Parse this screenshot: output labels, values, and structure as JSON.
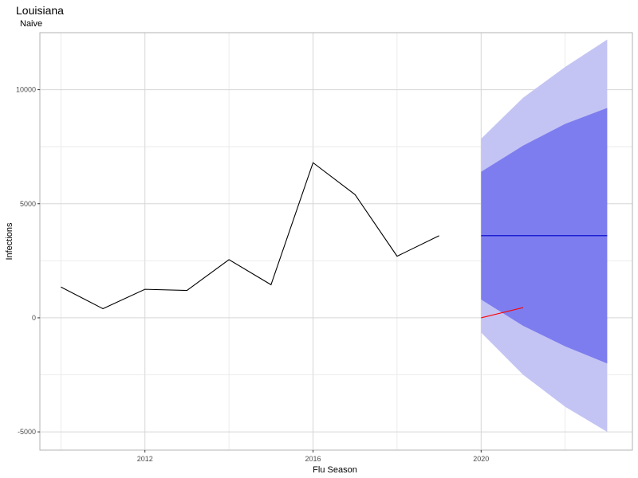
{
  "chart_data": {
    "type": "line",
    "title": "Louisiana",
    "subtitle": "Naive",
    "xlabel": "Flu Season",
    "ylabel": "Infections",
    "xlim": [
      2009.5,
      2023.6
    ],
    "ylim": [
      -5800,
      12500
    ],
    "x_ticks": [
      2012,
      2016,
      2020
    ],
    "x_tick_labels": [
      "2012",
      "2016",
      "2020"
    ],
    "y_ticks": [
      -5000,
      0,
      5000,
      10000
    ],
    "y_tick_labels": [
      "-5000",
      "0",
      "5000",
      "10000"
    ],
    "grid": true,
    "series": [
      {
        "role": "observed",
        "color": "#000000",
        "x": [
          2010,
          2011,
          2012,
          2013,
          2014,
          2015,
          2016,
          2017,
          2018,
          2019
        ],
        "y": [
          1350,
          400,
          1250,
          1200,
          2550,
          1450,
          6800,
          5400,
          2700,
          3600
        ]
      },
      {
        "role": "forecast",
        "color": "#0000cc",
        "x": [
          2020,
          2023
        ],
        "y": [
          3600,
          3600
        ]
      },
      {
        "role": "actual",
        "color": "#ff0000",
        "x": [
          2020,
          2021
        ],
        "y": [
          0,
          450
        ]
      }
    ],
    "bands": [
      {
        "level": "95",
        "color": "#c4c4f4",
        "x": [
          2020,
          2021,
          2022,
          2023
        ],
        "lower": [
          -650,
          -2500,
          -3900,
          -5000
        ],
        "upper": [
          7850,
          9650,
          11000,
          12200
        ]
      },
      {
        "level": "80",
        "color": "#7d7def",
        "x": [
          2020,
          2021,
          2022,
          2023
        ],
        "lower": [
          800,
          -350,
          -1250,
          -2000
        ],
        "upper": [
          6400,
          7550,
          8500,
          9200
        ]
      }
    ]
  }
}
